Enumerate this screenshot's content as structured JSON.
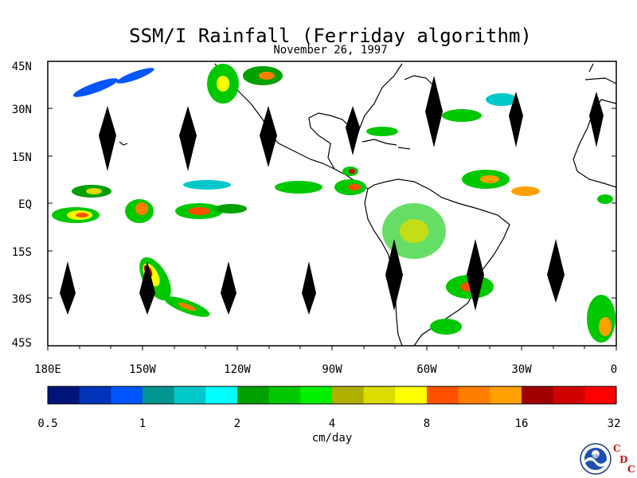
{
  "title": "SSM/I Rainfall (Ferriday algorithm)",
  "subtitle": "November 26, 1997",
  "map": {
    "lat_labels": [
      "45N",
      "30N",
      "15N",
      "EQ",
      "15S",
      "30S",
      "45S"
    ],
    "lon_labels": [
      "180E",
      "150W",
      "120W",
      "90W",
      "60W",
      "30W",
      "0"
    ],
    "lon_range": [
      -180,
      0
    ],
    "lat_range": [
      -45,
      45
    ],
    "no_data_swath_markers": "black diamonds (orbit gaps)"
  },
  "colorbar": {
    "unit_label": "cm/day",
    "tick_labels": [
      "0.5",
      "1",
      "2",
      "4",
      "8",
      "16",
      "32"
    ],
    "colors": [
      "#00157a",
      "#0033b8",
      "#0055ff",
      "#00958f",
      "#00c8c8",
      "#00ffff",
      "#00a000",
      "#00c800",
      "#00f000",
      "#b0b000",
      "#dcdc00",
      "#ffff00",
      "#ff5000",
      "#ff7e00",
      "#ffa000",
      "#a00000",
      "#d00000",
      "#ff0000"
    ]
  },
  "logos": {
    "noaa_text": "NOAA",
    "cdc_letters": [
      "C",
      "D",
      "C"
    ]
  }
}
